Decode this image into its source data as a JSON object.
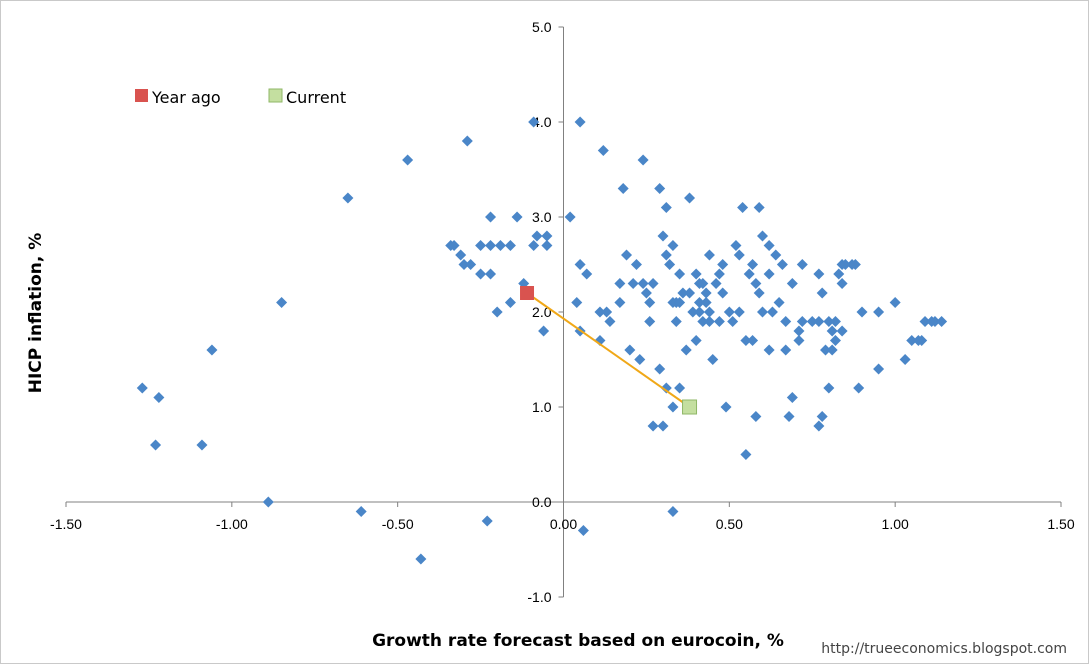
{
  "chart_data": {
    "type": "scatter",
    "xlabel": "Growth rate forecast based on eurocoin, %",
    "ylabel": "HICP inflation, %",
    "xlim": [
      -1.5,
      1.5
    ],
    "ylim": [
      -1.0,
      5.0
    ],
    "x_ticks": [
      "-1.50",
      "-1.00",
      "-0.50",
      "0.00",
      "0.50",
      "1.00",
      "1.50"
    ],
    "y_ticks": [
      "-1.0",
      "0.0",
      "1.0",
      "2.0",
      "3.0",
      "4.0",
      "5.0"
    ],
    "credit": "http://trueeconomics.blogspot.com",
    "colors": {
      "points": "#4a86c8",
      "year_ago": "#d9534f",
      "current": "#c4dfa0",
      "current_border": "#8fb767",
      "path": "#f0a818",
      "axis": "#808080"
    },
    "legend": [
      {
        "name": "Year ago",
        "marker": "year_ago"
      },
      {
        "name": "Current",
        "marker": "current"
      }
    ],
    "highlight": {
      "year_ago": {
        "x": -0.11,
        "y": 2.2
      },
      "current": {
        "x": 0.38,
        "y": 1.0
      }
    },
    "points": [
      [
        -1.27,
        1.2
      ],
      [
        -1.22,
        1.1
      ],
      [
        -1.23,
        0.6
      ],
      [
        -1.09,
        0.6
      ],
      [
        -1.06,
        1.6
      ],
      [
        -0.89,
        0.0
      ],
      [
        -0.85,
        2.1
      ],
      [
        -0.65,
        3.2
      ],
      [
        -0.61,
        -0.1
      ],
      [
        -0.47,
        3.6
      ],
      [
        -0.43,
        -0.6
      ],
      [
        -0.29,
        3.8
      ],
      [
        -0.23,
        -0.2
      ],
      [
        -0.09,
        4.0
      ],
      [
        0.05,
        4.0
      ],
      [
        -0.34,
        2.7
      ],
      [
        -0.33,
        2.7
      ],
      [
        -0.31,
        2.6
      ],
      [
        -0.3,
        2.5
      ],
      [
        -0.28,
        2.5
      ],
      [
        -0.25,
        2.7
      ],
      [
        -0.25,
        2.4
      ],
      [
        -0.22,
        2.7
      ],
      [
        -0.22,
        2.4
      ],
      [
        -0.22,
        3.0
      ],
      [
        -0.2,
        2.0
      ],
      [
        -0.19,
        2.7
      ],
      [
        -0.16,
        2.7
      ],
      [
        -0.16,
        2.1
      ],
      [
        -0.14,
        3.0
      ],
      [
        -0.12,
        2.3
      ],
      [
        -0.09,
        2.7
      ],
      [
        -0.08,
        2.8
      ],
      [
        -0.06,
        1.8
      ],
      [
        -0.05,
        2.8
      ],
      [
        -0.05,
        2.7
      ],
      [
        0.02,
        3.0
      ],
      [
        0.04,
        2.1
      ],
      [
        0.05,
        2.5
      ],
      [
        0.05,
        1.8
      ],
      [
        0.06,
        -0.3
      ],
      [
        0.07,
        2.4
      ],
      [
        0.11,
        1.7
      ],
      [
        0.11,
        2.0
      ],
      [
        0.12,
        3.7
      ],
      [
        0.13,
        2.0
      ],
      [
        0.14,
        1.9
      ],
      [
        0.17,
        2.1
      ],
      [
        0.17,
        2.3
      ],
      [
        0.18,
        3.3
      ],
      [
        0.19,
        2.6
      ],
      [
        0.2,
        1.6
      ],
      [
        0.21,
        2.3
      ],
      [
        0.22,
        2.5
      ],
      [
        0.23,
        1.5
      ],
      [
        0.24,
        3.6
      ],
      [
        0.24,
        2.3
      ],
      [
        0.25,
        2.2
      ],
      [
        0.26,
        2.1
      ],
      [
        0.26,
        1.9
      ],
      [
        0.27,
        2.3
      ],
      [
        0.27,
        0.8
      ],
      [
        0.29,
        3.3
      ],
      [
        0.29,
        1.4
      ],
      [
        0.3,
        2.8
      ],
      [
        0.3,
        0.8
      ],
      [
        0.31,
        2.6
      ],
      [
        0.31,
        3.1
      ],
      [
        0.31,
        1.2
      ],
      [
        0.32,
        2.5
      ],
      [
        0.33,
        2.7
      ],
      [
        0.33,
        2.1
      ],
      [
        0.33,
        1.0
      ],
      [
        0.33,
        -0.1
      ],
      [
        0.34,
        2.1
      ],
      [
        0.34,
        1.9
      ],
      [
        0.35,
        2.4
      ],
      [
        0.35,
        2.1
      ],
      [
        0.35,
        1.2
      ],
      [
        0.36,
        2.2
      ],
      [
        0.37,
        1.6
      ],
      [
        0.38,
        2.2
      ],
      [
        0.38,
        3.2
      ],
      [
        0.39,
        2.0
      ],
      [
        0.4,
        2.4
      ],
      [
        0.4,
        1.7
      ],
      [
        0.41,
        2.3
      ],
      [
        0.41,
        2.1
      ],
      [
        0.41,
        2.0
      ],
      [
        0.42,
        1.9
      ],
      [
        0.42,
        2.3
      ],
      [
        0.43,
        2.2
      ],
      [
        0.43,
        2.1
      ],
      [
        0.44,
        2.0
      ],
      [
        0.44,
        1.9
      ],
      [
        0.44,
        2.6
      ],
      [
        0.45,
        1.5
      ],
      [
        0.46,
        2.3
      ],
      [
        0.47,
        1.9
      ],
      [
        0.47,
        2.4
      ],
      [
        0.48,
        2.5
      ],
      [
        0.48,
        2.2
      ],
      [
        0.49,
        1.0
      ],
      [
        0.5,
        2.0
      ],
      [
        0.51,
        1.9
      ],
      [
        0.52,
        2.7
      ],
      [
        0.53,
        2.6
      ],
      [
        0.53,
        2.0
      ],
      [
        0.54,
        3.1
      ],
      [
        0.55,
        1.7
      ],
      [
        0.55,
        0.5
      ],
      [
        0.56,
        2.4
      ],
      [
        0.57,
        2.5
      ],
      [
        0.57,
        1.7
      ],
      [
        0.58,
        0.9
      ],
      [
        0.58,
        2.3
      ],
      [
        0.59,
        2.2
      ],
      [
        0.59,
        3.1
      ],
      [
        0.6,
        2.8
      ],
      [
        0.6,
        2.0
      ],
      [
        0.62,
        2.7
      ],
      [
        0.62,
        2.4
      ],
      [
        0.62,
        1.6
      ],
      [
        0.63,
        2.0
      ],
      [
        0.64,
        2.6
      ],
      [
        0.65,
        2.1
      ],
      [
        0.66,
        2.5
      ],
      [
        0.67,
        1.6
      ],
      [
        0.67,
        1.9
      ],
      [
        0.68,
        0.9
      ],
      [
        0.69,
        2.3
      ],
      [
        0.69,
        1.1
      ],
      [
        0.71,
        1.7
      ],
      [
        0.71,
        1.8
      ],
      [
        0.72,
        1.9
      ],
      [
        0.72,
        2.5
      ],
      [
        0.75,
        1.9
      ],
      [
        0.77,
        1.9
      ],
      [
        0.77,
        2.4
      ],
      [
        0.77,
        0.8
      ],
      [
        0.78,
        2.2
      ],
      [
        0.78,
        0.9
      ],
      [
        0.79,
        1.6
      ],
      [
        0.8,
        1.9
      ],
      [
        0.8,
        1.2
      ],
      [
        0.81,
        1.6
      ],
      [
        0.81,
        1.8
      ],
      [
        0.82,
        1.7
      ],
      [
        0.82,
        1.9
      ],
      [
        0.83,
        2.4
      ],
      [
        0.84,
        2.5
      ],
      [
        0.84,
        2.3
      ],
      [
        0.84,
        1.8
      ],
      [
        0.85,
        2.5
      ],
      [
        0.87,
        2.5
      ],
      [
        0.88,
        2.5
      ],
      [
        0.89,
        1.2
      ],
      [
        0.9,
        2.0
      ],
      [
        0.95,
        2.0
      ],
      [
        0.95,
        1.4
      ],
      [
        1.0,
        2.1
      ],
      [
        1.03,
        1.5
      ],
      [
        1.05,
        1.7
      ],
      [
        1.07,
        1.7
      ],
      [
        1.08,
        1.7
      ],
      [
        1.09,
        1.9
      ],
      [
        1.11,
        1.9
      ],
      [
        1.12,
        1.9
      ],
      [
        1.14,
        1.9
      ]
    ]
  }
}
